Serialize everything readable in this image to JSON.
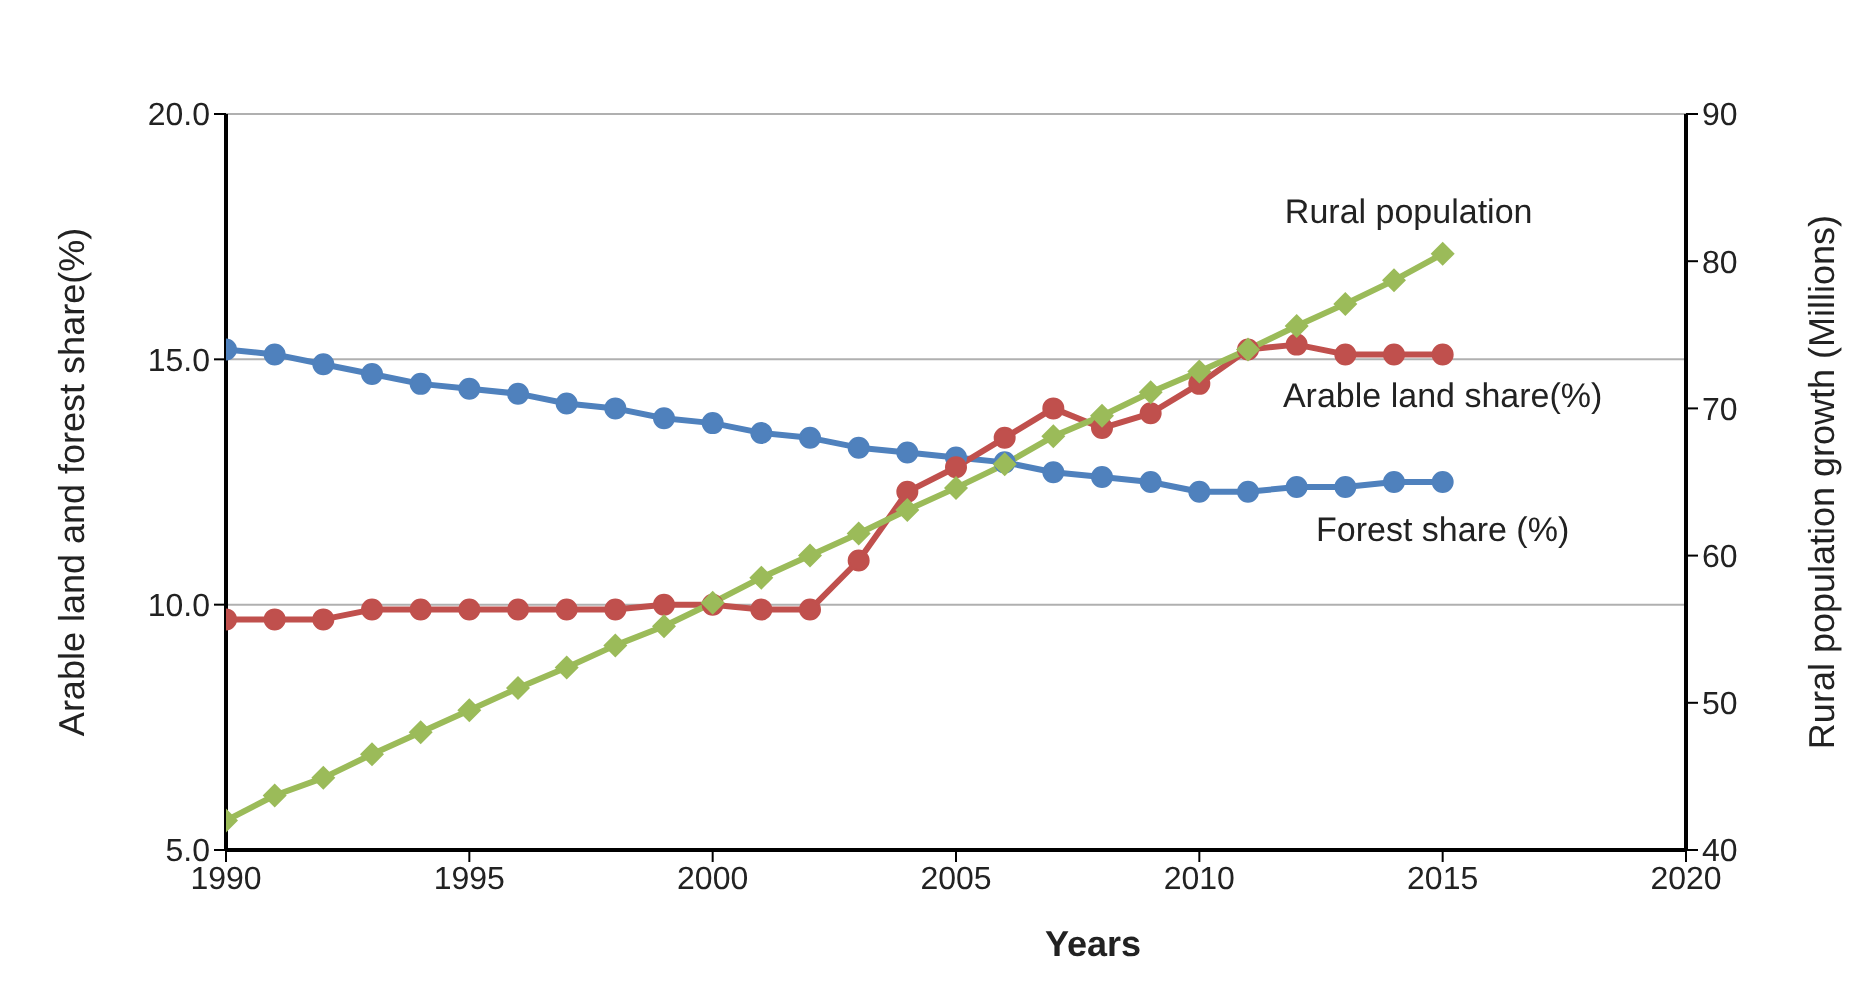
{
  "chart_data": {
    "type": "line",
    "xlabel": "Years",
    "ylabel": "Arable land and forest share(%)",
    "y2label": "Rural population growth (Millions)",
    "x": [
      1990,
      1991,
      1992,
      1993,
      1994,
      1995,
      1996,
      1997,
      1998,
      1999,
      2000,
      2001,
      2002,
      2003,
      2004,
      2005,
      2006,
      2007,
      2008,
      2009,
      2010,
      2011,
      2012,
      2013,
      2014,
      2015
    ],
    "xlim": [
      1990,
      2020
    ],
    "xticks": [
      1990,
      1995,
      2000,
      2005,
      2010,
      2015,
      2020
    ],
    "ylim": [
      5,
      20
    ],
    "yticks": [
      {
        "value": 5,
        "label": "5.0"
      },
      {
        "value": 10,
        "label": "10.0"
      },
      {
        "value": 15,
        "label": "15.0"
      },
      {
        "value": 20,
        "label": "20.0"
      }
    ],
    "y2lim": [
      40,
      90
    ],
    "y2ticks": [
      40,
      50,
      60,
      70,
      80,
      90
    ],
    "grid": "y",
    "legend": false,
    "line_style": "solid",
    "series": [
      {
        "name": "Forest share (%)",
        "color": "#4f81bd",
        "marker": "circle",
        "values": [
          15.2,
          15.1,
          14.9,
          14.7,
          14.5,
          14.4,
          14.3,
          14.1,
          14.0,
          13.8,
          13.7,
          13.5,
          13.4,
          13.2,
          13.1,
          13.0,
          12.9,
          12.7,
          12.6,
          12.5,
          12.3,
          12.3,
          12.4,
          12.4,
          12.5,
          12.5
        ]
      },
      {
        "name": "Arable land share(%)",
        "color": "#c0504d",
        "marker": "circle",
        "values": [
          9.7,
          9.7,
          9.7,
          9.9,
          9.9,
          9.9,
          9.9,
          9.9,
          9.9,
          10.0,
          10.0,
          9.9,
          9.9,
          10.9,
          12.3,
          12.8,
          13.4,
          14.0,
          13.6,
          13.9,
          14.5,
          15.2,
          15.3,
          15.1,
          15.1,
          15.1
        ]
      },
      {
        "name": "Rural population",
        "color": "#9bbb59",
        "marker": "diamond",
        "axis": "y2",
        "values": [
          42.0,
          43.7,
          44.9,
          46.5,
          48.0,
          49.5,
          51.0,
          52.4,
          53.9,
          55.2,
          56.8,
          58.5,
          60.0,
          61.5,
          63.1,
          64.6,
          66.2,
          68.1,
          69.5,
          71.1,
          72.5,
          74.0,
          75.6,
          77.1,
          78.7,
          80.5
        ]
      }
    ]
  }
}
